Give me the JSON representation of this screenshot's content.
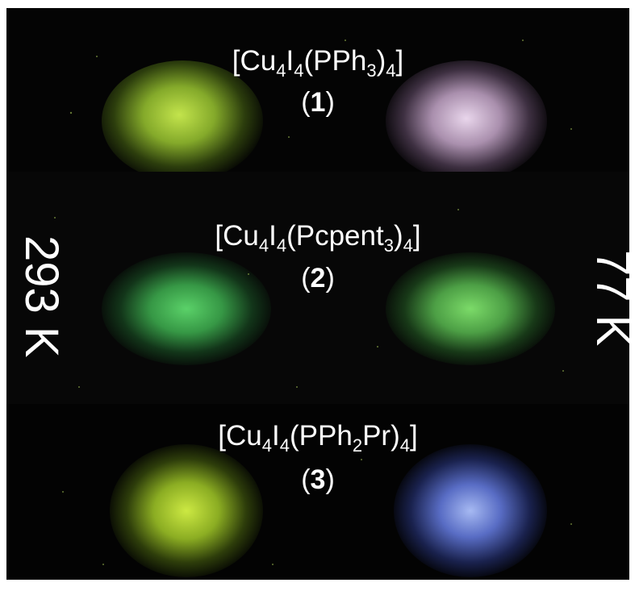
{
  "temperatures": {
    "left": "293 K",
    "right": "77 K"
  },
  "compounds": [
    {
      "formula_parts": [
        "[Cu",
        "4",
        "I",
        "4",
        "(PPh",
        "3",
        ")",
        "4",
        "]"
      ],
      "number": "1",
      "emission_293K_color": "#b9e84a",
      "emission_77K_color": "#e6c9ec"
    },
    {
      "formula_parts": [
        "[Cu",
        "4",
        "I",
        "4",
        "(Pcpent",
        "3",
        ")",
        "4",
        "]"
      ],
      "number": "2",
      "emission_293K_color": "#4fd067",
      "emission_77K_color": "#74d86a"
    },
    {
      "formula_parts": [
        "[Cu",
        "4",
        "I",
        "4",
        "(PPh",
        "2",
        "Pr)",
        "4",
        "]"
      ],
      "number": "3",
      "emission_293K_color": "#c8ec3a",
      "emission_77K_color": "#6f8cf2"
    }
  ]
}
